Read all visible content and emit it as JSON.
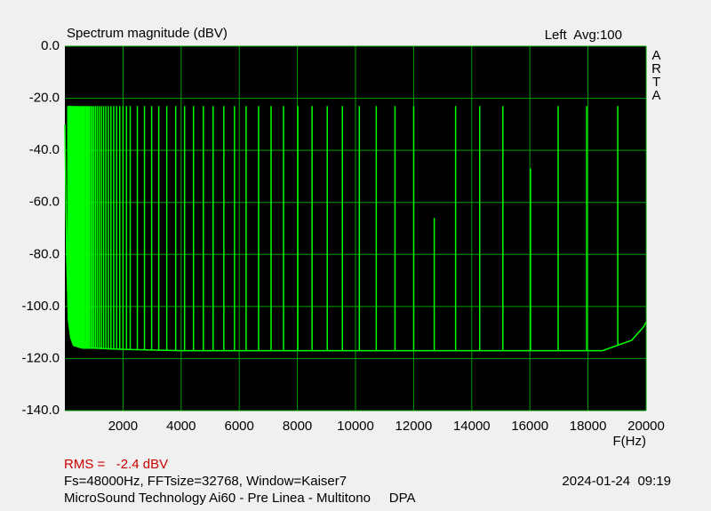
{
  "chart_data": {
    "type": "spectrum",
    "title": "Spectrum magnitude (dBV)",
    "channel": "Left  Avg:100",
    "brand": "ARTA",
    "x_label": "F(Hz)",
    "rms": "RMS =   -2.4 dBV",
    "settings": "Fs=48000Hz, FFTsize=32768, Window=Kaiser7",
    "timestamp": "2024-01-24  09:19",
    "device": "MicroSound Technology Ai60 - Pre Linea - Multitono     DPA",
    "xlim": [
      0,
      20000
    ],
    "ylim": [
      -140,
      0
    ],
    "xticks": [
      2000,
      4000,
      6000,
      8000,
      10000,
      12000,
      14000,
      16000,
      18000,
      20000
    ],
    "yticks": [
      {
        "value": 0,
        "label": "0.0"
      },
      {
        "value": -20,
        "label": "-20.0"
      },
      {
        "value": -40,
        "label": "-40.0"
      },
      {
        "value": -60,
        "label": "-60.0"
      },
      {
        "value": -80,
        "label": "-80.0"
      },
      {
        "value": -100,
        "label": "-100.0"
      },
      {
        "value": -120,
        "label": "-120.0"
      },
      {
        "value": -140,
        "label": "-140.0"
      }
    ],
    "grid": true,
    "grid_color": "#00a000",
    "background": "#000000",
    "rms_color": "#cc0000",
    "series": [
      {
        "color": "#00ff00",
        "x": [
          0,
          60,
          120,
          200,
          300,
          600,
          1000,
          2000,
          4000,
          8000,
          12000,
          18500,
          19500,
          19900,
          20000
        ],
        "values": [
          -30,
          -80,
          -105,
          -112,
          -115,
          -116,
          -116,
          -116.5,
          -117,
          -117,
          -117,
          -117,
          -113,
          -108,
          -106
        ]
      }
    ],
    "tones": {
      "color": "#00ff00",
      "x": [
        102,
        108,
        115,
        122,
        129,
        137,
        145,
        154,
        163,
        173,
        183,
        194,
        206,
        218,
        231,
        245,
        260,
        276,
        292,
        310,
        329,
        348,
        369,
        391,
        415,
        440,
        466,
        494,
        524,
        555,
        589,
        624,
        661,
        701,
        743,
        788,
        835,
        885,
        938,
        994,
        1054,
        1117,
        1184,
        1255,
        1331,
        1411,
        1495,
        1585,
        1680,
        1781,
        1888,
        2001,
        2121,
        2248,
        2494,
        2739,
        2985,
        3230,
        3506,
        3813,
        4119,
        4426,
        4764,
        5101,
        5469,
        5837,
        6236,
        6666,
        7095,
        7524,
        8015,
        8506,
        9028,
        9549,
        10132,
        10715,
        11359,
        12003,
        12709,
        13445,
        14273,
        15071,
        16022,
        16973,
        17954,
        19025
      ],
      "values": [
        -23,
        -23,
        -23,
        -23,
        -23,
        -23,
        -23,
        -23,
        -23,
        -23,
        -23,
        -23,
        -23,
        -23,
        -23,
        -23,
        -23,
        -23,
        -23,
        -23,
        -23,
        -23,
        -23,
        -23,
        -23,
        -23,
        -23,
        -23,
        -23,
        -23,
        -23,
        -23,
        -23,
        -23,
        -23,
        -23,
        -23,
        -23,
        -23,
        -23,
        -23,
        -23,
        -23,
        -23,
        -23,
        -23,
        -23,
        -23,
        -23,
        -23,
        -23,
        -23,
        -23,
        -23,
        -23,
        -23,
        -23,
        -23,
        -23,
        -23,
        -23,
        -23,
        -23,
        -23,
        -23,
        -23,
        -23,
        -23,
        -23,
        -23,
        -23,
        -23,
        -23,
        -23,
        -23,
        -23,
        -23,
        -23,
        -66,
        -23,
        -23,
        -23,
        -47,
        -23,
        -23,
        -23
      ]
    }
  }
}
